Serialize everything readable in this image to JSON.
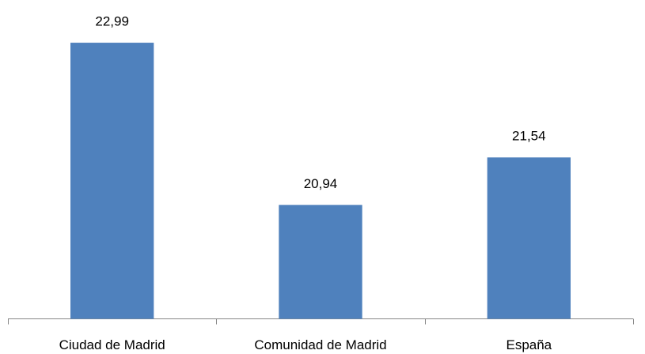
{
  "chart_data": {
    "type": "bar",
    "categories": [
      "Ciudad de Madrid",
      "Comunidad de Madrid",
      "España"
    ],
    "values": [
      22.99,
      20.94,
      21.54
    ],
    "value_labels": [
      "22,99",
      "20,94",
      "21,54"
    ],
    "color": "#4f81bd",
    "ylim": [
      19.5,
      23.5
    ]
  }
}
